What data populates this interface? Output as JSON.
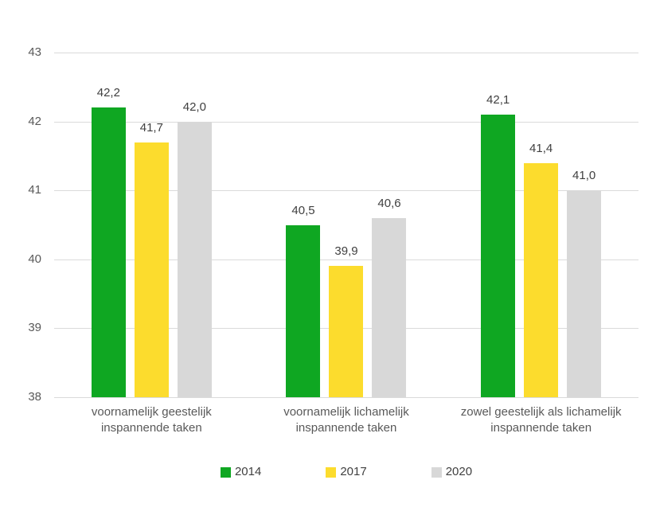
{
  "chart_data": {
    "type": "bar",
    "title": "",
    "xlabel": "",
    "ylabel": "",
    "categories": [
      "voornamelijk geestelijk inspannende taken",
      "voornamelijk lichamelijk inspannende taken",
      "zowel geestelijk als lichamelijk inspannende taken"
    ],
    "category_label_lines": [
      [
        "voornamelijk geestelijk",
        "inspannende taken"
      ],
      [
        "voornamelijk lichamelijk",
        "inspannende taken"
      ],
      [
        "zowel geestelijk als lichamelijk",
        "inspannende taken"
      ]
    ],
    "series": [
      {
        "name": "2014",
        "color": "#0fa722",
        "values": [
          42.2,
          40.5,
          42.1
        ],
        "value_labels": [
          "42,2",
          "40,5",
          "42,1"
        ]
      },
      {
        "name": "2017",
        "color": "#fcdc2d",
        "values": [
          41.7,
          39.9,
          41.4
        ],
        "value_labels": [
          "41,7",
          "39,9",
          "41,4"
        ]
      },
      {
        "name": "2020",
        "color": "#d8d8d8",
        "values": [
          42.0,
          40.6,
          41.0
        ],
        "value_labels": [
          "42,0",
          "40,6",
          "41,0"
        ]
      }
    ],
    "ylim": [
      38,
      43
    ],
    "yticks": [
      43,
      42,
      41,
      40,
      39,
      38
    ],
    "decimal_separator": ",",
    "grid": true,
    "legend_position": "bottom"
  },
  "colors": {
    "background": "#ffffff",
    "gridline": "#dadada",
    "axis_text": "#595959",
    "value_label_text": "#404040"
  }
}
